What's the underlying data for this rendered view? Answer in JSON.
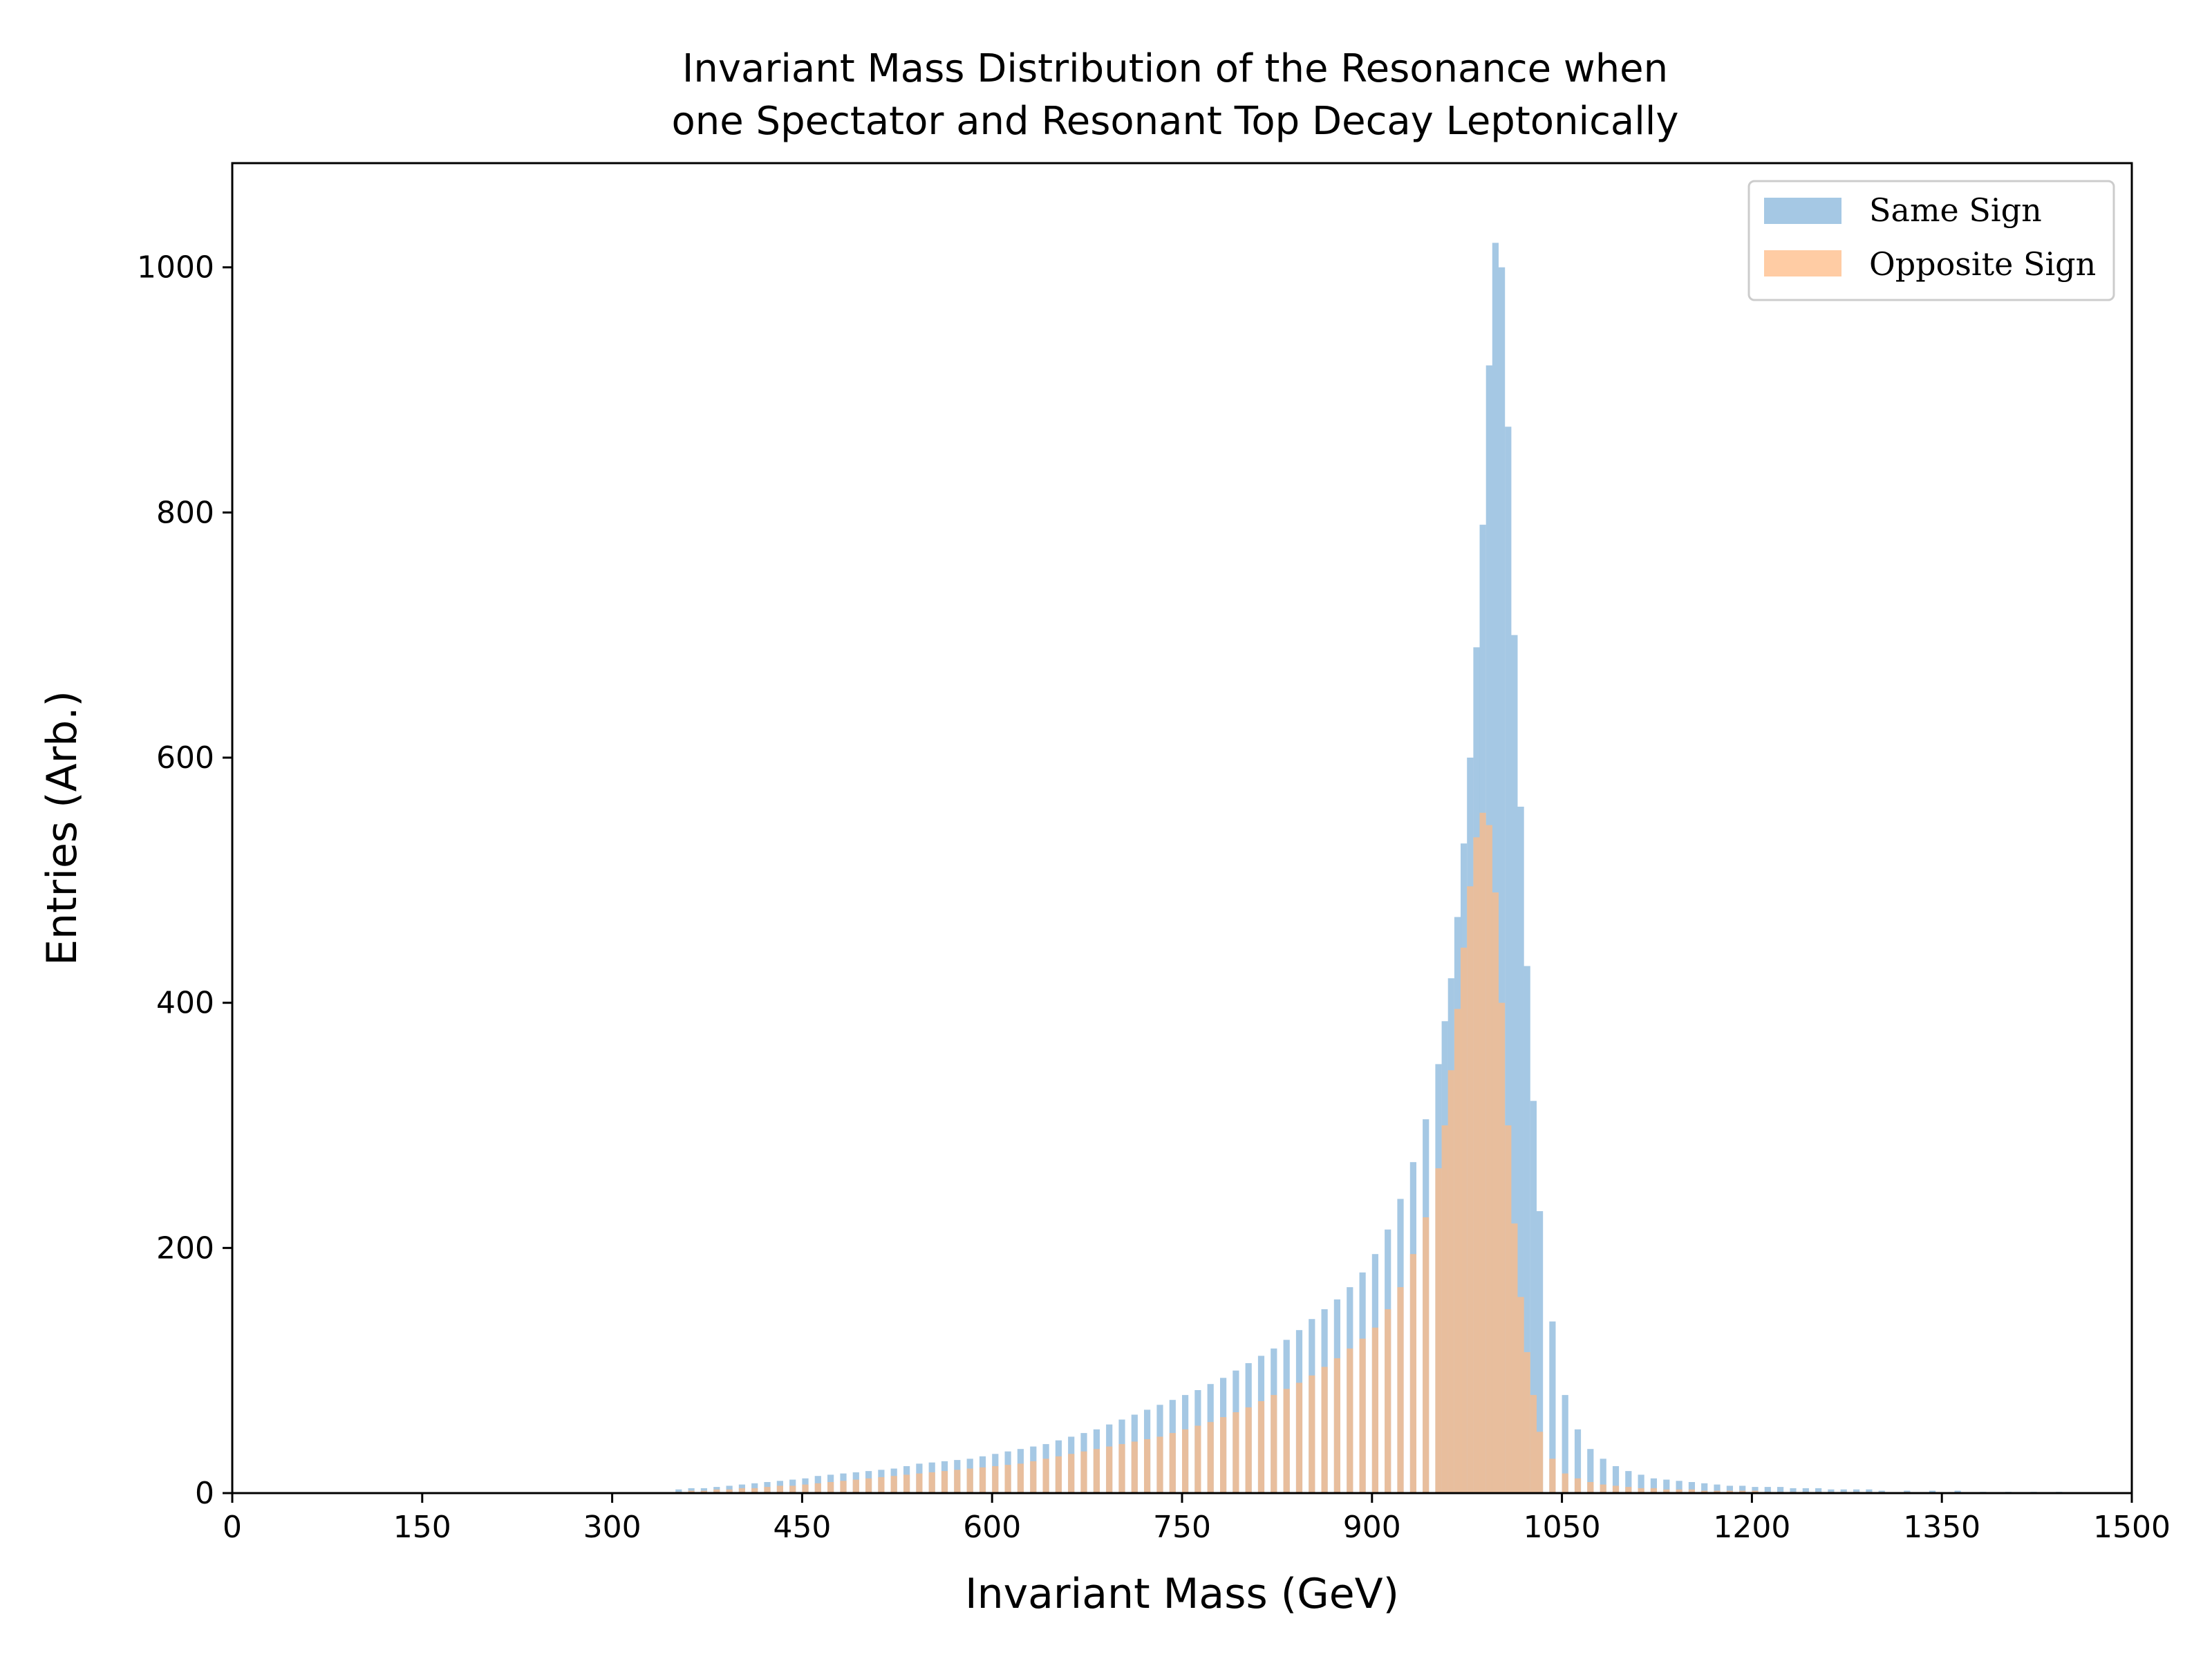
{
  "chart_data": {
    "type": "bar",
    "title": "Invariant Mass Distribution of the Resonance when\none Spectator and Resonant Top Decay Leptonically",
    "xlabel": "Invariant Mass (GeV)",
    "ylabel": "Entries (Arb.)",
    "xlim": [
      0,
      1500
    ],
    "ylim": [
      0,
      1085
    ],
    "xticks": [
      0,
      150,
      300,
      450,
      600,
      750,
      900,
      1050,
      1200,
      1350,
      1500
    ],
    "yticks": [
      0,
      200,
      400,
      600,
      800,
      1000
    ],
    "grid": false,
    "legend_position": "top-right",
    "bin_width": 5,
    "x": [
      350,
      360,
      370,
      380,
      390,
      400,
      410,
      420,
      430,
      440,
      450,
      460,
      470,
      480,
      490,
      500,
      510,
      520,
      530,
      540,
      550,
      560,
      570,
      580,
      590,
      600,
      610,
      620,
      630,
      640,
      650,
      660,
      670,
      680,
      690,
      700,
      710,
      720,
      730,
      740,
      750,
      760,
      770,
      780,
      790,
      800,
      810,
      820,
      830,
      840,
      850,
      860,
      870,
      880,
      890,
      900,
      910,
      920,
      930,
      940,
      950,
      955,
      960,
      965,
      970,
      975,
      980,
      985,
      990,
      995,
      1000,
      1005,
      1010,
      1015,
      1020,
      1025,
      1030,
      1040,
      1050,
      1060,
      1070,
      1080,
      1090,
      1100,
      1110,
      1120,
      1130,
      1140,
      1150,
      1160,
      1170,
      1180,
      1190,
      1200,
      1210,
      1220,
      1230,
      1240,
      1250,
      1260,
      1270,
      1280,
      1290,
      1300,
      1320,
      1340,
      1360,
      1380,
      1400,
      1420,
      1440
    ],
    "series": [
      {
        "name": "Same Sign",
        "color": "#7fb0d8",
        "values": [
          3,
          4,
          4,
          5,
          6,
          7,
          8,
          9,
          10,
          11,
          12,
          14,
          15,
          16,
          17,
          18,
          19,
          20,
          22,
          24,
          25,
          26,
          27,
          28,
          30,
          32,
          34,
          36,
          38,
          40,
          43,
          46,
          49,
          52,
          56,
          60,
          64,
          68,
          72,
          76,
          80,
          84,
          89,
          94,
          100,
          106,
          112,
          118,
          125,
          133,
          142,
          150,
          158,
          168,
          180,
          195,
          215,
          240,
          270,
          305,
          350,
          385,
          420,
          470,
          530,
          600,
          690,
          790,
          920,
          1020,
          1000,
          870,
          700,
          560,
          430,
          320,
          230,
          140,
          80,
          52,
          36,
          28,
          22,
          18,
          15,
          12,
          11,
          10,
          9,
          8,
          7,
          6,
          6,
          5,
          5,
          5,
          4,
          4,
          4,
          3,
          3,
          3,
          3,
          2,
          2,
          2,
          2,
          1,
          1,
          1,
          1
        ]
      },
      {
        "name": "Opposite Sign",
        "color": "#ffbb85",
        "values": [
          1,
          2,
          2,
          3,
          3,
          4,
          4,
          5,
          6,
          6,
          7,
          8,
          9,
          10,
          11,
          12,
          13,
          14,
          15,
          16,
          17,
          18,
          19,
          20,
          21,
          22,
          23,
          24,
          26,
          28,
          30,
          32,
          34,
          36,
          38,
          40,
          42,
          44,
          46,
          49,
          52,
          55,
          58,
          62,
          66,
          70,
          75,
          80,
          85,
          90,
          96,
          103,
          110,
          118,
          126,
          135,
          150,
          168,
          195,
          225,
          265,
          300,
          345,
          395,
          445,
          495,
          535,
          555,
          545,
          490,
          400,
          300,
          220,
          160,
          115,
          80,
          50,
          28,
          16,
          12,
          9,
          7,
          6,
          5,
          4,
          4,
          3,
          3,
          3,
          2,
          2,
          2,
          2,
          2,
          1,
          1,
          1,
          1,
          1,
          1,
          1,
          1,
          1,
          1,
          1,
          0,
          0,
          0,
          0,
          0,
          0
        ]
      }
    ]
  }
}
